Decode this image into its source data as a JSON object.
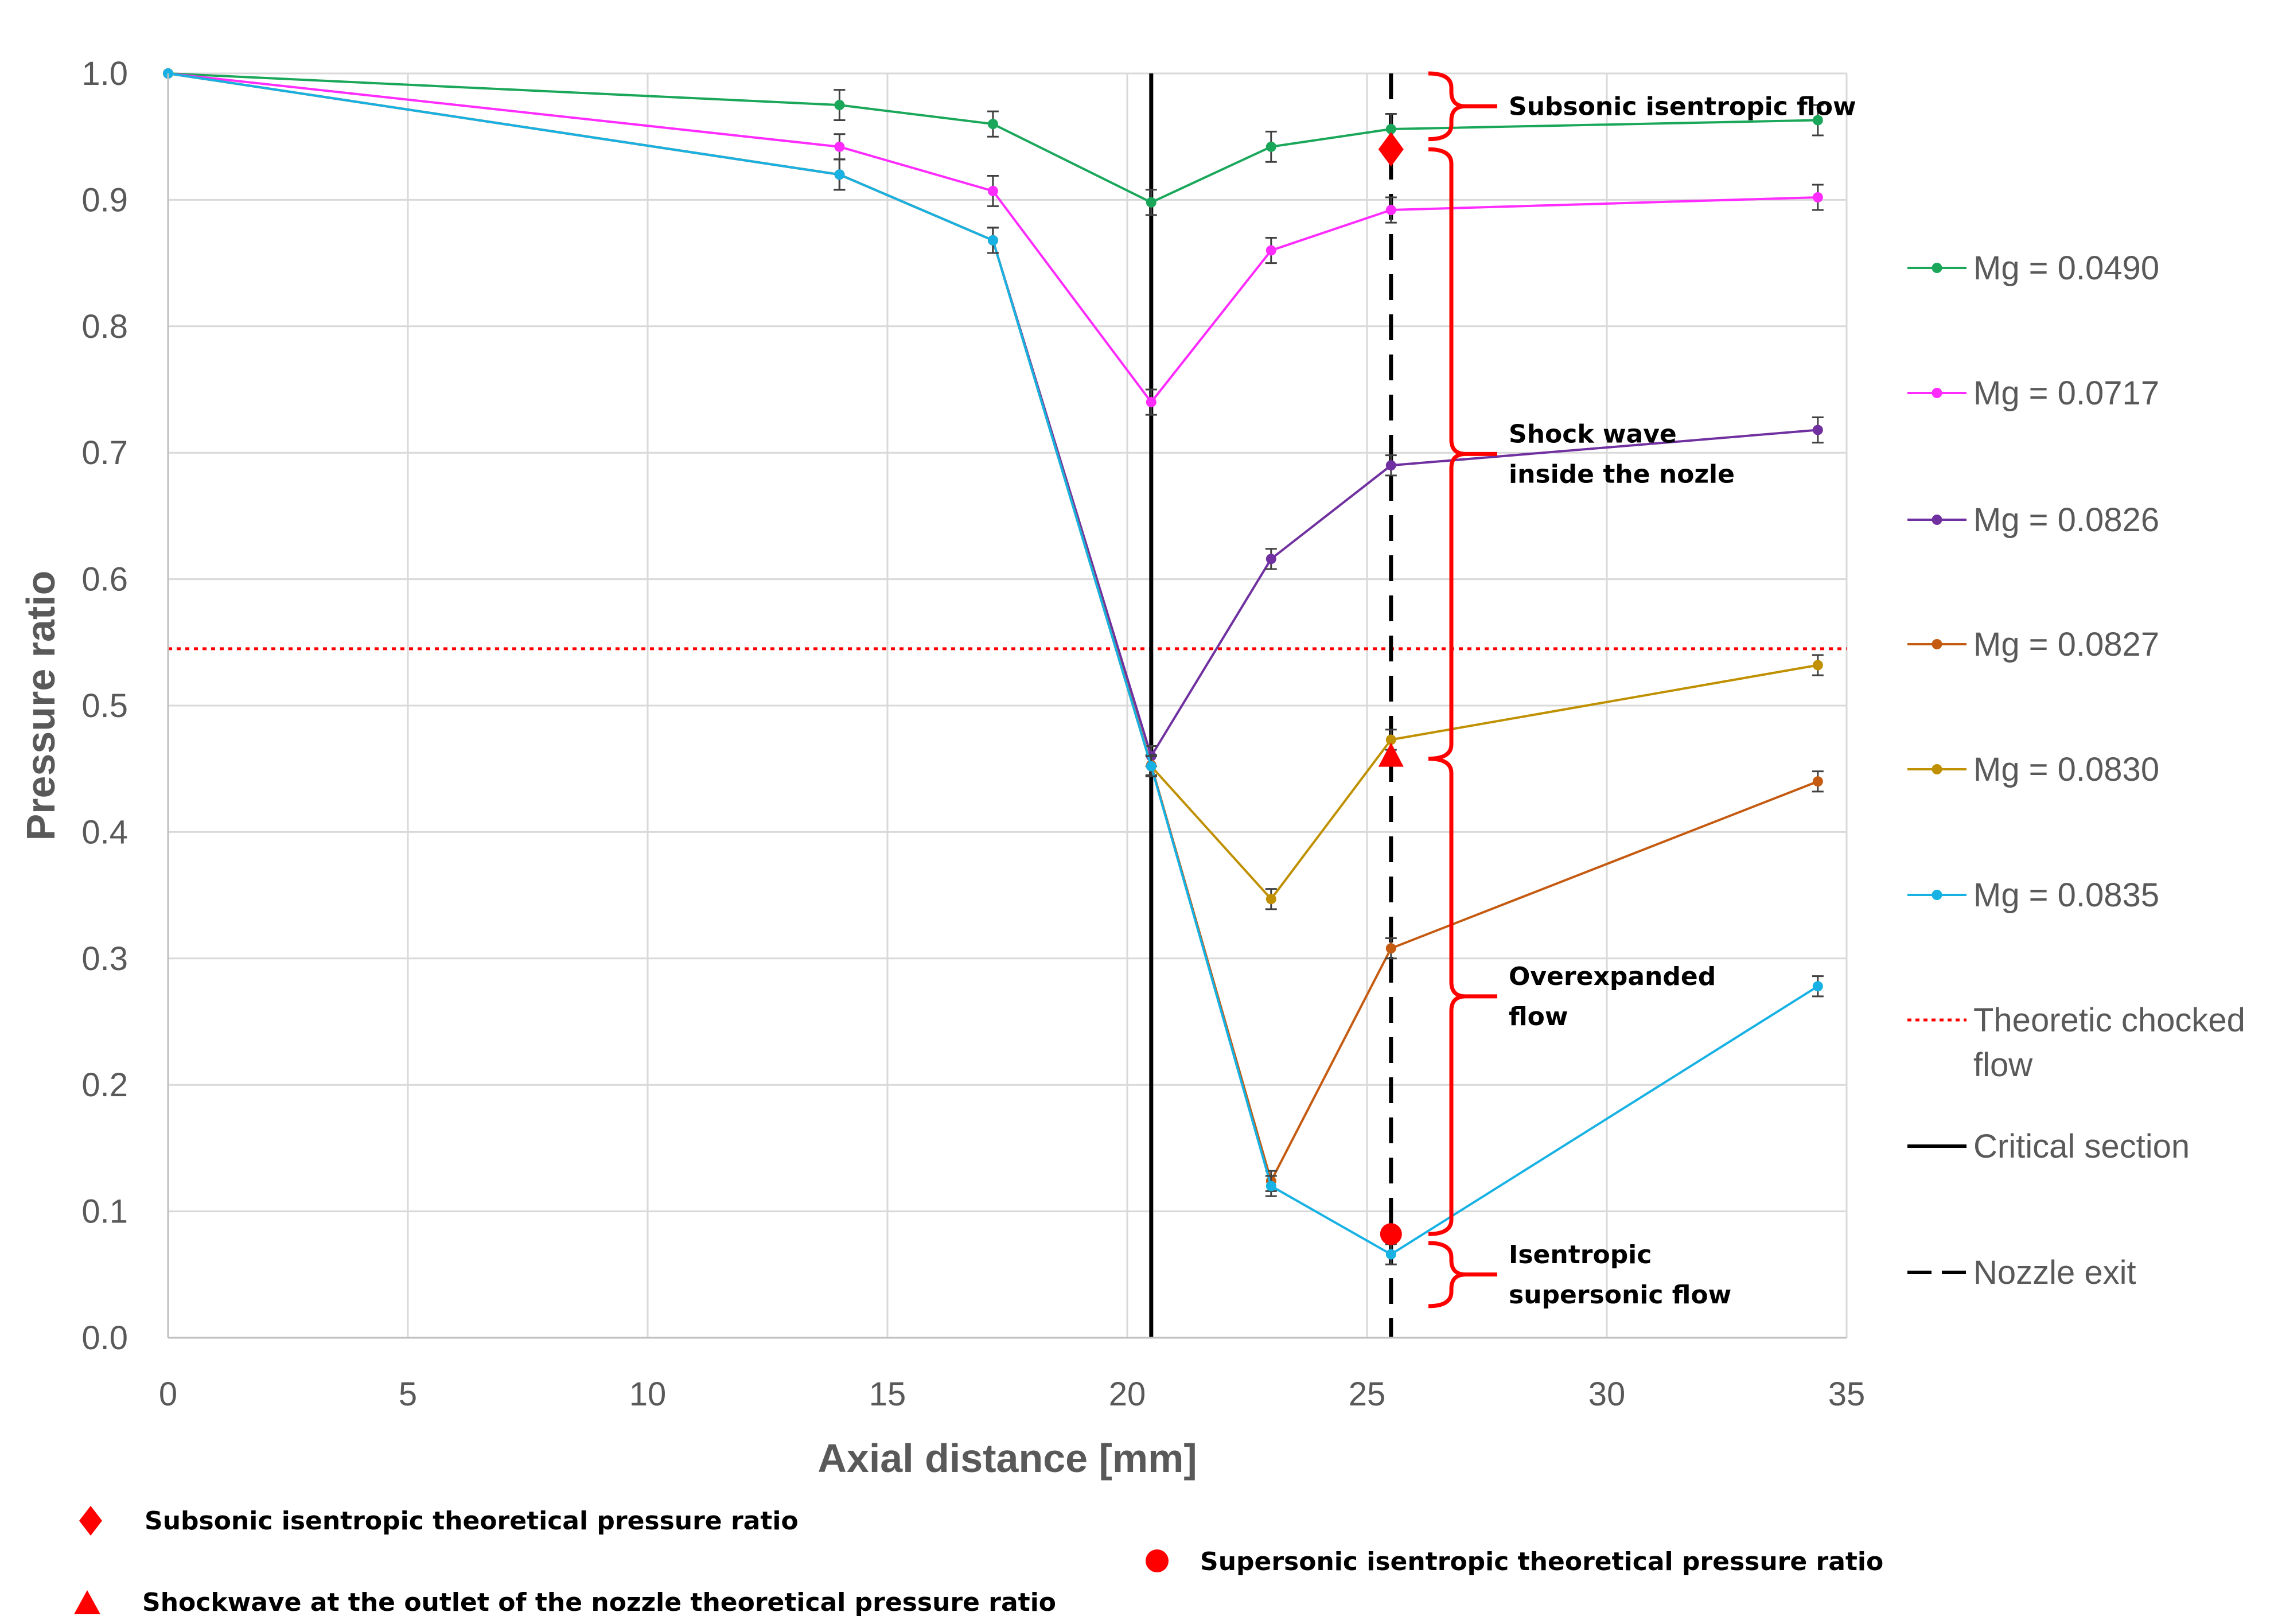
{
  "chart_data": {
    "type": "line",
    "xlabel": "Axial distance [mm]",
    "ylabel": "Pressure ratio",
    "xlim": [
      0,
      35
    ],
    "ylim": [
      0.0,
      1.0
    ],
    "x_ticks": [
      "0",
      "5",
      "10",
      "15",
      "20",
      "25",
      "30",
      "35"
    ],
    "y_ticks": [
      "0.0",
      "0.1",
      "0.2",
      "0.3",
      "0.4",
      "0.5",
      "0.6",
      "0.7",
      "0.8",
      "0.9",
      "1.0"
    ],
    "grid": true,
    "x": [
      0,
      14,
      17.2,
      20.5,
      23,
      25.5,
      34.4
    ],
    "series": [
      {
        "name": "Mg = 0.0490",
        "color": "#1aa75a",
        "values": [
          1.0,
          0.975,
          0.96,
          0.898,
          0.942,
          0.956,
          0.963
        ],
        "errors": [
          0,
          0.012,
          0.01,
          0.01,
          0.012,
          0.012,
          0.012
        ]
      },
      {
        "name": "Mg = 0.0717",
        "color": "#ff2bff",
        "values": [
          1.0,
          0.942,
          0.907,
          0.74,
          0.86,
          0.892,
          0.902
        ],
        "errors": [
          0,
          0.01,
          0.012,
          0.01,
          0.01,
          0.01,
          0.01
        ]
      },
      {
        "name": "Mg = 0.0826",
        "color": "#7030a0",
        "values": [
          1.0,
          0.92,
          0.868,
          0.46,
          0.616,
          0.69,
          0.718
        ],
        "errors": [
          0,
          0.012,
          0.01,
          0.008,
          0.008,
          0.008,
          0.01
        ]
      },
      {
        "name": "Mg = 0.0827",
        "color": "#c55a11",
        "values": [
          1.0,
          0.92,
          0.868,
          0.453,
          0.124,
          0.308,
          0.44
        ],
        "errors": [
          0,
          0.012,
          0.01,
          0.008,
          0.008,
          0.008,
          0.008
        ]
      },
      {
        "name": "Mg = 0.0830",
        "color": "#bf9000",
        "values": [
          1.0,
          0.92,
          0.868,
          0.452,
          0.347,
          0.473,
          0.532
        ],
        "errors": [
          0,
          0.012,
          0.01,
          0.008,
          0.008,
          0.008,
          0.008
        ]
      },
      {
        "name": "Mg = 0.0835",
        "color": "#17b1e3",
        "values": [
          1.0,
          0.92,
          0.868,
          0.452,
          0.12,
          0.066,
          0.278
        ],
        "errors": [
          0,
          0.012,
          0.01,
          0.008,
          0.008,
          0.008,
          0.008
        ]
      }
    ],
    "reference_lines": {
      "theoretic_chocked_flow": {
        "label": "Theoretic chocked flow",
        "value": 0.545,
        "color": "#ff0000"
      },
      "critical_section": {
        "label": "Critical section",
        "value": 20.5,
        "color": "#000000"
      },
      "nozzle_exit": {
        "label": "Nozzle exit",
        "value": 25.5,
        "color": "#000000"
      }
    },
    "theoretical_points": [
      {
        "label": "Subsonic isentropic theoretical pressure ratio",
        "marker": "diamond",
        "x": 25.5,
        "y": 0.94,
        "color": "#ff0000"
      },
      {
        "label": "Shockwave at the outlet of the nozzle theoretical pressure ratio",
        "marker": "triangle",
        "x": 25.5,
        "y": 0.458,
        "color": "#ff0000"
      },
      {
        "label": "Supersonic isentropic theoretical pressure ratio",
        "marker": "circle",
        "x": 25.5,
        "y": 0.082,
        "color": "#ff0000"
      }
    ],
    "annotations": [
      {
        "lines": [
          "Subsonic isentropic flow"
        ],
        "y_from": 0.948,
        "y_to": 1.0
      },
      {
        "lines": [
          "Shock wave",
          "inside the nozle"
        ],
        "y_from": 0.458,
        "y_to": 0.94
      },
      {
        "lines": [
          "Overexpanded",
          "flow"
        ],
        "y_from": 0.082,
        "y_to": 0.458
      },
      {
        "lines": [
          "Isentropic",
          "supersonic flow"
        ],
        "y_from": 0.025,
        "y_to": 0.075
      }
    ],
    "legend_position": "right"
  }
}
